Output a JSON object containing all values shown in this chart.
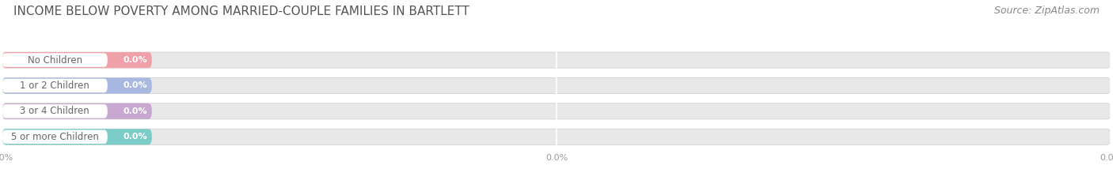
{
  "title": "INCOME BELOW POVERTY AMONG MARRIED-COUPLE FAMILIES IN BARTLETT",
  "source": "Source: ZipAtlas.com",
  "categories": [
    "No Children",
    "1 or 2 Children",
    "3 or 4 Children",
    "5 or more Children"
  ],
  "values": [
    0.0,
    0.0,
    0.0,
    0.0
  ],
  "bar_colors": [
    "#f0a0a8",
    "#a8b8e0",
    "#c8a8d0",
    "#7cccc8"
  ],
  "background_color": "#ffffff",
  "bar_bg_color": "#e8e8e8",
  "bar_bg_color2": "#f0f0f0",
  "label_color": "#666666",
  "value_color": "#ffffff",
  "title_color": "#555555",
  "source_color": "#888888",
  "grid_color": "#dddddd",
  "title_fontsize": 11,
  "label_fontsize": 8.5,
  "value_fontsize": 8,
  "source_fontsize": 9,
  "tick_fontsize": 8,
  "tick_color": "#999999"
}
